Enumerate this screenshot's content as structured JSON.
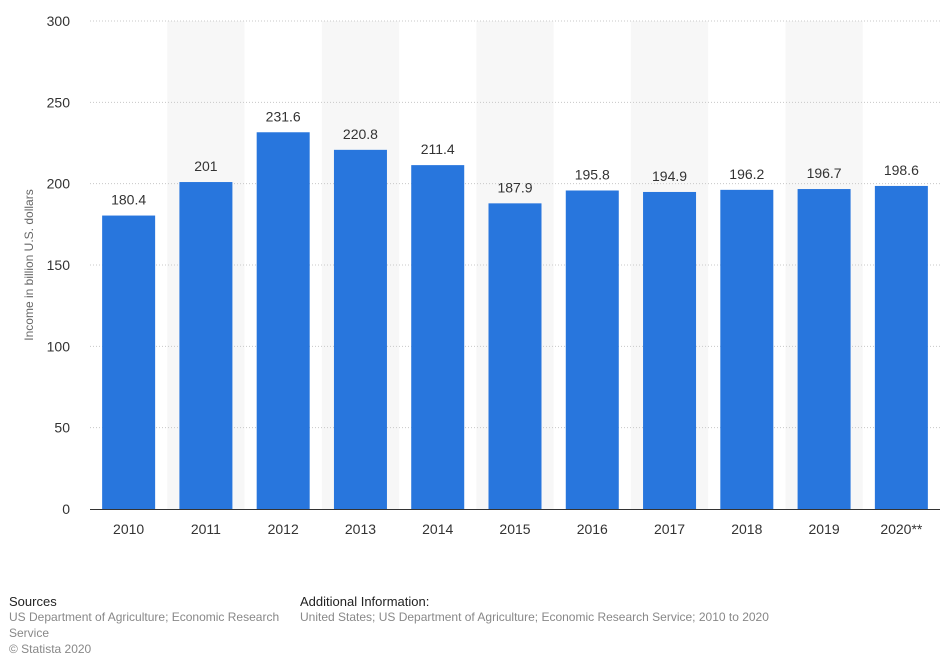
{
  "chart_data": {
    "type": "bar",
    "categories": [
      "2010",
      "2011",
      "2012",
      "2013",
      "2014",
      "2015",
      "2016",
      "2017",
      "2018",
      "2019",
      "2020**"
    ],
    "series": [
      {
        "values": [
          180.4,
          201,
          231.6,
          220.8,
          211.4,
          187.9,
          195.8,
          194.9,
          196.2,
          196.7,
          198.6
        ]
      }
    ],
    "value_labels": [
      "180.4",
      "201",
      "231.6",
      "220.8",
      "211.4",
      "187.9",
      "195.8",
      "194.9",
      "196.2",
      "196.7",
      "198.6"
    ],
    "ylabel": "Income in billion U.S. dollars",
    "ylim": [
      0,
      300
    ],
    "yticks": [
      0,
      50,
      100,
      150,
      200,
      250,
      300
    ],
    "grid": true,
    "bar_color": "#2876dd",
    "band_color": "#f7f7f7"
  },
  "footer": {
    "sources_heading": "Sources",
    "sources_line1": "US Department of Agriculture; Economic Research",
    "sources_line2": "Service",
    "copyright": "© Statista 2020",
    "additional_heading": "Additional Information:",
    "additional_text": "United States; US Department of Agriculture; Economic Research Service; 2010 to 2020"
  }
}
